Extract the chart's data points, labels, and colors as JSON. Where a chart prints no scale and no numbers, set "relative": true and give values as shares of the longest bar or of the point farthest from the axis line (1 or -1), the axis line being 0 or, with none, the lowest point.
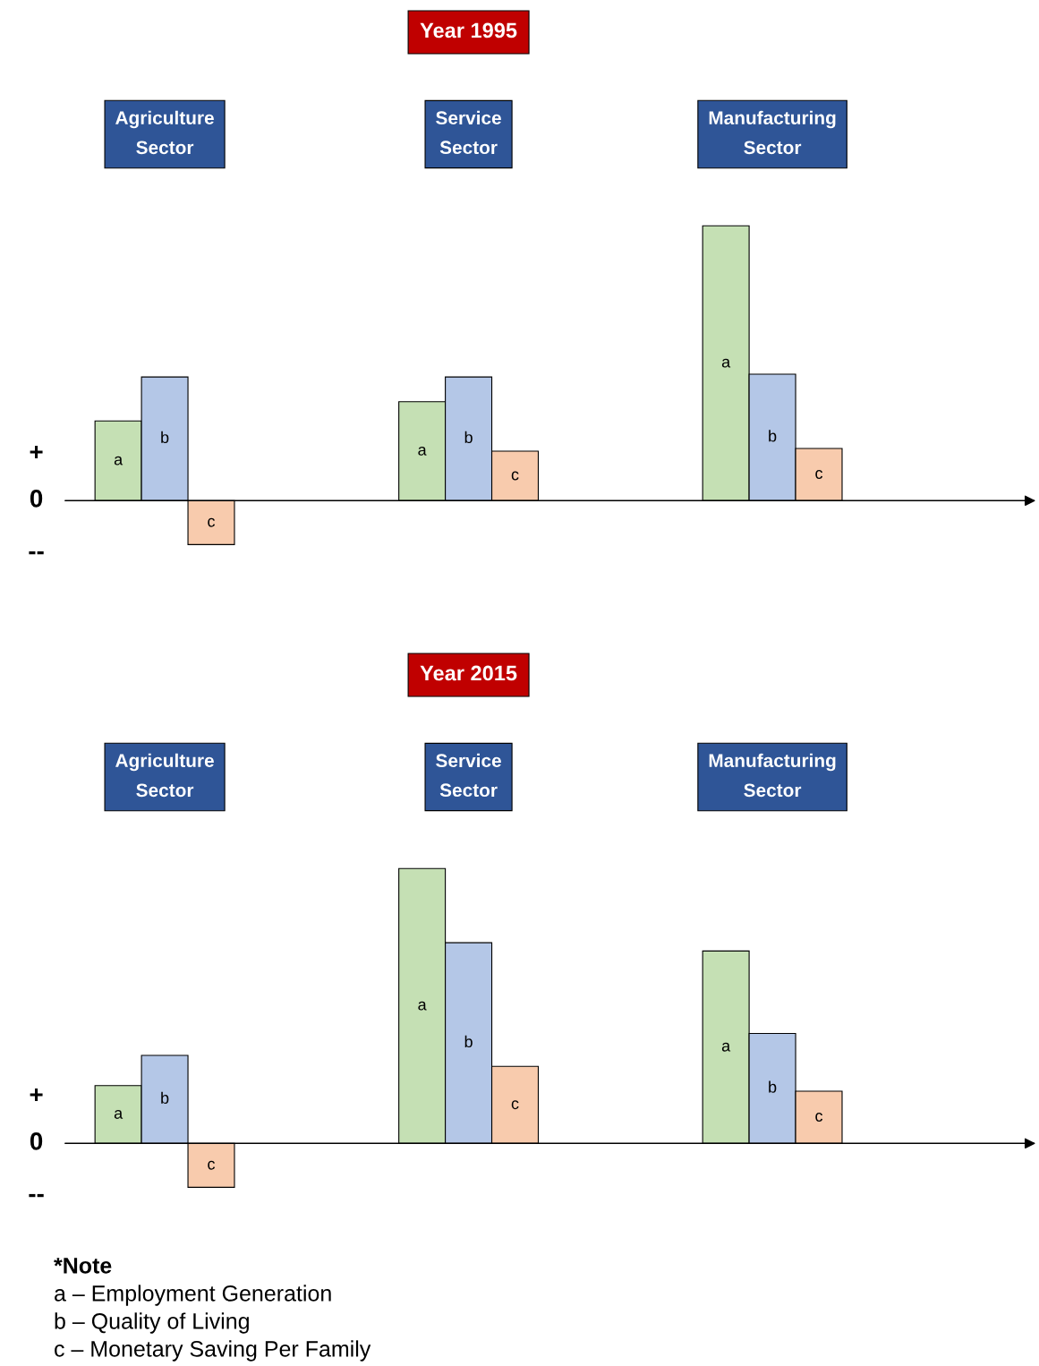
{
  "chart_data": [
    {
      "type": "bar",
      "title": "Year 1995",
      "relative": true,
      "legend": false,
      "categories": [
        "Agriculture\nSector",
        "Service\nSector",
        "Manufacturing\nSector"
      ],
      "series": [
        {
          "name": "a",
          "color": "#c5e0b4",
          "values": [
            0.29,
            0.36,
            1.0
          ]
        },
        {
          "name": "b",
          "color": "#b4c7e7",
          "values": [
            0.45,
            0.45,
            0.46
          ]
        },
        {
          "name": "c",
          "color": "#f8cbad",
          "values": [
            -0.16,
            0.18,
            0.19
          ]
        }
      ],
      "annotations": [
        "+",
        "0",
        "--"
      ]
    },
    {
      "type": "bar",
      "title": "Year 2015",
      "relative": true,
      "legend": false,
      "categories": [
        "Agriculture\nSector",
        "Service\nSector",
        "Manufacturing\nSector"
      ],
      "series": [
        {
          "name": "a",
          "color": "#c5e0b4",
          "values": [
            0.21,
            1.0,
            0.7
          ]
        },
        {
          "name": "b",
          "color": "#b4c7e7",
          "values": [
            0.32,
            0.73,
            0.4
          ]
        },
        {
          "name": "c",
          "color": "#f8cbad",
          "values": [
            -0.16,
            0.28,
            0.19
          ]
        }
      ],
      "annotations": [
        "+",
        "0",
        "--",
        "*Note",
        "a – Employment Generation",
        "b – Quality of Living",
        "c – Monetary Saving Per Family"
      ]
    }
  ]
}
